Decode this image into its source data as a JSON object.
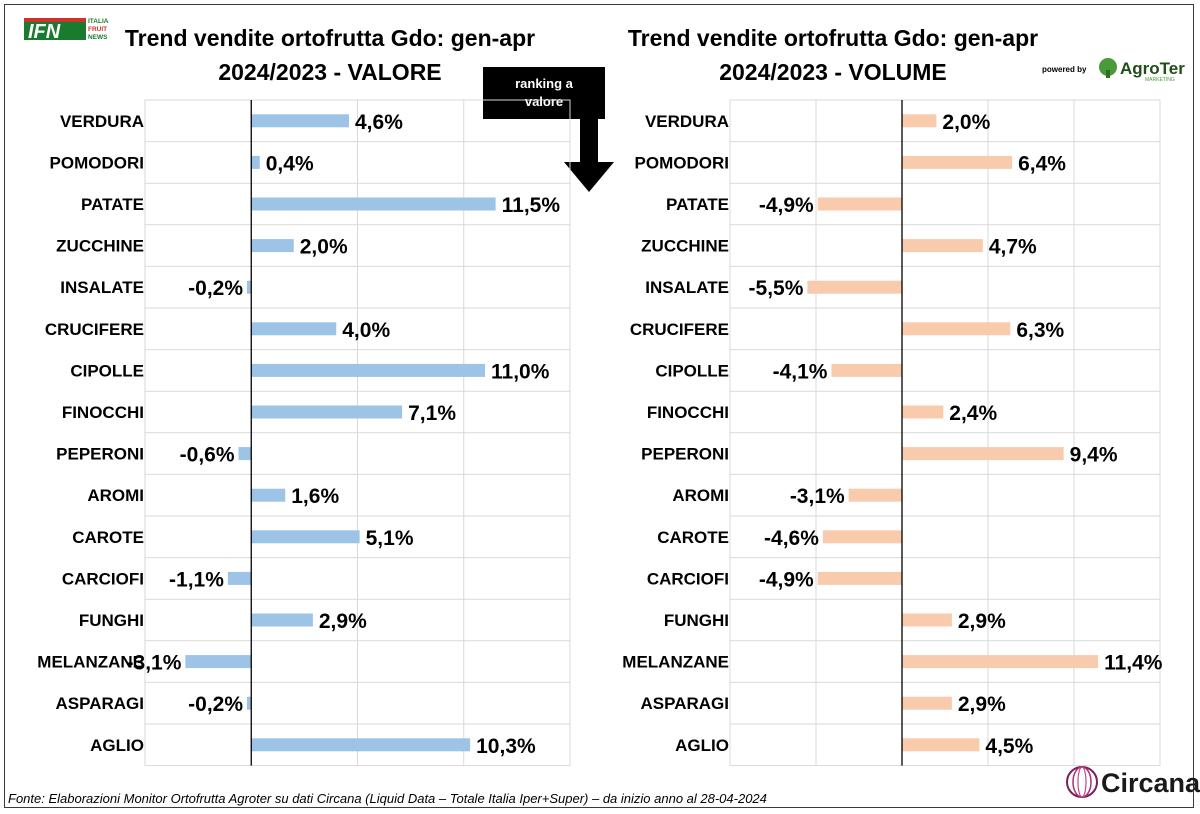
{
  "header": {
    "logo_left": {
      "main": "IFN",
      "lines": [
        "ITALIA",
        "FRUIT",
        "NEWS"
      ]
    },
    "powered_by": "powered by",
    "logo_right": "AgroTer",
    "logo_right_tagline": "MARKETING"
  },
  "annotation": {
    "text_line1": "ranking a",
    "text_line2": "valore"
  },
  "footer": {
    "source": "Fonte: Elaborazioni Monitor Ortofrutta Agroter su dati Circana (Liquid Data – Totale Italia Iper+Super) –  da inizio anno al 28-04-2024",
    "brand": "Circana."
  },
  "colors": {
    "valore": "#9dc3e6",
    "volume": "#f8cbad"
  },
  "chart_data": [
    {
      "type": "bar",
      "orientation": "horizontal",
      "title": "Trend vendite ortofrutta Gdo: gen-apr 2024/2023 - VALORE",
      "title_lines": [
        "Trend vendite ortofrutta Gdo: gen-apr",
        "2024/2023 - VALORE"
      ],
      "categories": [
        "VERDURA",
        "POMODORI",
        "PATATE",
        "ZUCCHINE",
        "INSALATE",
        "CRUCIFERE",
        "CIPOLLE",
        "FINOCCHI",
        "PEPERONI",
        "AROMI",
        "CAROTE",
        "CARCIOFI",
        "FUNGHI",
        "MELANZANE",
        "ASPARAGI",
        "AGLIO"
      ],
      "values": [
        4.6,
        0.4,
        11.5,
        2.0,
        -0.2,
        4.0,
        11.0,
        7.1,
        -0.6,
        1.6,
        5.1,
        -1.1,
        2.9,
        -3.1,
        -0.2,
        10.3
      ],
      "labels": [
        "4,6%",
        "0,4%",
        "11,5%",
        "2,0%",
        "-0,2%",
        "4,0%",
        "11,0%",
        "7,1%",
        "-0,6%",
        "1,6%",
        "5,1%",
        "-1,1%",
        "2,9%",
        "-3,1%",
        "-0,2%",
        "10,3%"
      ],
      "xlim": [
        -5,
        15
      ],
      "grid": true,
      "color": "#9dc3e6"
    },
    {
      "type": "bar",
      "orientation": "horizontal",
      "title": "Trend vendite ortofrutta Gdo: gen-apr 2024/2023 - VOLUME",
      "title_lines": [
        "Trend vendite ortofrutta Gdo: gen-apr",
        "2024/2023 - VOLUME"
      ],
      "categories": [
        "VERDURA",
        "POMODORI",
        "PATATE",
        "ZUCCHINE",
        "INSALATE",
        "CRUCIFERE",
        "CIPOLLE",
        "FINOCCHI",
        "PEPERONI",
        "AROMI",
        "CAROTE",
        "CARCIOFI",
        "FUNGHI",
        "MELANZANE",
        "ASPARAGI",
        "AGLIO"
      ],
      "values": [
        2.0,
        6.4,
        -4.9,
        4.7,
        -5.5,
        6.3,
        -4.1,
        2.4,
        9.4,
        -3.1,
        -4.6,
        -4.9,
        2.9,
        11.4,
        2.9,
        4.5
      ],
      "labels": [
        "2,0%",
        "6,4%",
        "-4,9%",
        "4,7%",
        "-5,5%",
        "6,3%",
        "-4,1%",
        "2,4%",
        "9,4%",
        "-3,1%",
        "-4,6%",
        "-4,9%",
        "2,9%",
        "11,4%",
        "2,9%",
        "4,5%"
      ],
      "xlim": [
        -10,
        15
      ],
      "grid": true,
      "color": "#f8cbad"
    }
  ]
}
